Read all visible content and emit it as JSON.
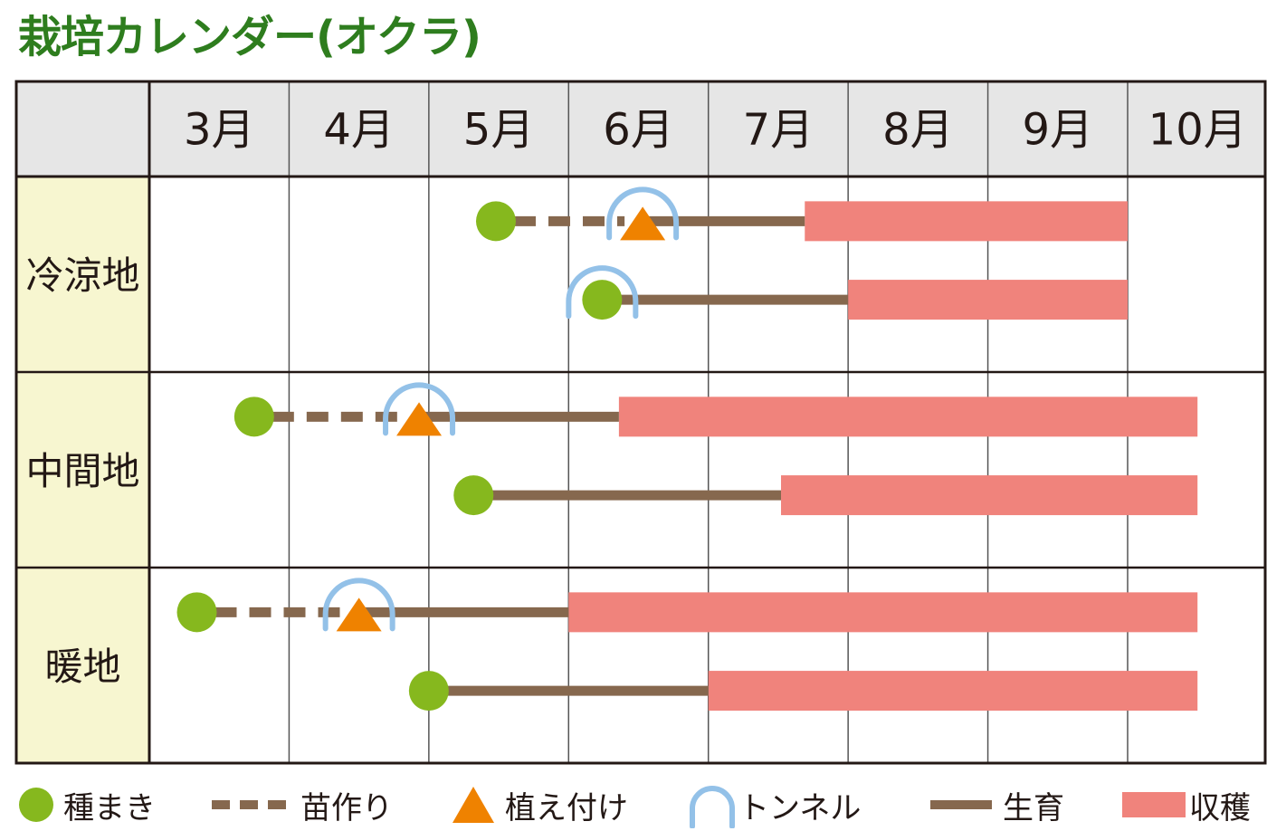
{
  "title": "栽培カレンダー(オクラ)",
  "colors": {
    "title": "#2e7d1e",
    "header_bg": "#e6e6e6",
    "region_bg": "#f7f6d0",
    "grid_line": "#555555",
    "border": "#231815",
    "seeding": "#86b81e",
    "seedling": "#86684e",
    "planting": "#ef8200",
    "tunnel": "#93c1e8",
    "growth": "#86684e",
    "harvest": "#f0837c"
  },
  "header": {
    "months": [
      "3月",
      "4月",
      "5月",
      "6月",
      "7月",
      "8月",
      "9月",
      "10月"
    ]
  },
  "regions": [
    {
      "label": "冷涼地"
    },
    {
      "label": "中間地"
    },
    {
      "label": "暖地"
    }
  ],
  "legend": [
    {
      "key": "seeding",
      "label": "種まき"
    },
    {
      "key": "seedling",
      "label": "苗作り"
    },
    {
      "key": "planting",
      "label": "植え付け"
    },
    {
      "key": "tunnel",
      "label": "トンネル"
    },
    {
      "key": "growth",
      "label": "生育"
    },
    {
      "key": "harvest",
      "label": "収穫"
    }
  ],
  "chart_data": {
    "type": "gantt",
    "title": "栽培カレンダー(オクラ)",
    "x_axis": {
      "categories": [
        "3月",
        "4月",
        "5月",
        "6月",
        "7月",
        "8月",
        "9月",
        "10月"
      ],
      "range_months": [
        3,
        11
      ]
    },
    "y_axis": {
      "categories": [
        "冷涼地",
        "中間地",
        "暖地"
      ]
    },
    "legend_position": "bottom",
    "rows": [
      {
        "region": "冷涼地",
        "lane": 1,
        "seeding": 5.48,
        "seedling": [
          5.48,
          6.53
        ],
        "planting": 6.53,
        "tunnel": 6.53,
        "growth": [
          6.53,
          7.69
        ],
        "harvest": [
          7.69,
          10.0
        ]
      },
      {
        "region": "冷涼地",
        "lane": 2,
        "seeding": 6.24,
        "tunnel": 6.24,
        "growth": [
          6.24,
          8.0
        ],
        "harvest": [
          8.0,
          10.0
        ]
      },
      {
        "region": "中間地",
        "lane": 1,
        "seeding": 3.75,
        "seedling": [
          3.75,
          4.93
        ],
        "planting": 4.93,
        "tunnel": 4.93,
        "growth": [
          4.93,
          6.36
        ],
        "harvest": [
          6.36,
          10.5
        ]
      },
      {
        "region": "中間地",
        "lane": 2,
        "seeding": 5.32,
        "growth": [
          5.32,
          7.52
        ],
        "harvest": [
          7.52,
          10.5
        ]
      },
      {
        "region": "暖地",
        "lane": 1,
        "seeding": 3.34,
        "seedling": [
          3.34,
          4.5
        ],
        "planting": 4.5,
        "tunnel": 4.5,
        "growth": [
          4.5,
          6.0
        ],
        "harvest": [
          6.0,
          10.5
        ]
      },
      {
        "region": "暖地",
        "lane": 2,
        "seeding": 5.0,
        "growth": [
          5.0,
          7.0
        ],
        "harvest": [
          7.0,
          10.5
        ]
      }
    ]
  }
}
